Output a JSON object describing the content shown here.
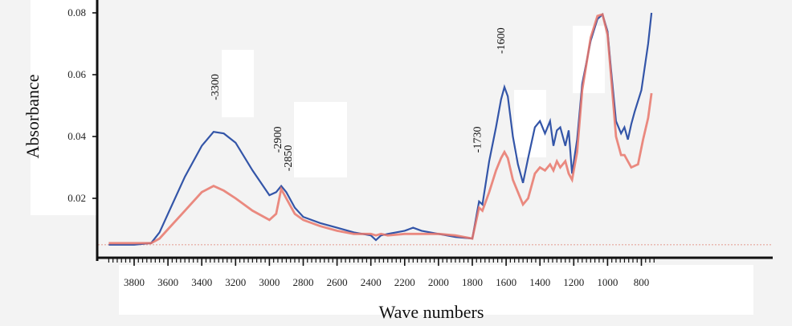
{
  "chart_data": {
    "type": "line",
    "title": "",
    "xlabel": "Wave numbers",
    "ylabel": "Absorbance",
    "xlim": [
      3950,
      720
    ],
    "ylim": [
      0.0,
      0.082
    ],
    "x_reversed": true,
    "x_ticks": [
      "3800",
      "3600",
      "3400",
      "3200",
      "3000",
      "2800",
      "2600",
      "2400",
      "2200",
      "2000",
      "1800",
      "1600",
      "1400",
      "1200",
      "1000",
      "800"
    ],
    "y_ticks": [
      "0.02",
      "0.04",
      "0.06",
      "0.08"
    ],
    "baseline_y": 0.005,
    "annotations": [
      {
        "text": "-3300",
        "x": 3300,
        "y": 0.056
      },
      {
        "text": "-2900",
        "x": 2930,
        "y": 0.039
      },
      {
        "text": "-2850",
        "x": 2870,
        "y": 0.033
      },
      {
        "text": "-1730",
        "x": 1750,
        "y": 0.039
      },
      {
        "text": "-1600",
        "x": 1610,
        "y": 0.071
      }
    ],
    "series": [
      {
        "color": "#3355a8",
        "x": [
          3950,
          3800,
          3700,
          3650,
          3600,
          3500,
          3400,
          3330,
          3270,
          3200,
          3100,
          3000,
          2960,
          2930,
          2900,
          2850,
          2800,
          2700,
          2600,
          2500,
          2400,
          2370,
          2340,
          2300,
          2200,
          2150,
          2100,
          2000,
          1900,
          1800,
          1780,
          1760,
          1740,
          1700,
          1660,
          1630,
          1610,
          1590,
          1560,
          1530,
          1500,
          1470,
          1430,
          1400,
          1370,
          1340,
          1320,
          1300,
          1280,
          1250,
          1230,
          1210,
          1180,
          1150,
          1100,
          1060,
          1030,
          1000,
          980,
          950,
          920,
          900,
          880,
          860,
          840,
          800,
          760,
          740
        ],
        "y": [
          0.005,
          0.005,
          0.0055,
          0.009,
          0.015,
          0.027,
          0.037,
          0.0415,
          0.041,
          0.038,
          0.029,
          0.021,
          0.022,
          0.024,
          0.022,
          0.017,
          0.014,
          0.012,
          0.0105,
          0.009,
          0.008,
          0.0065,
          0.008,
          0.0085,
          0.0095,
          0.0105,
          0.0095,
          0.0085,
          0.0075,
          0.007,
          0.013,
          0.019,
          0.018,
          0.032,
          0.043,
          0.052,
          0.056,
          0.053,
          0.04,
          0.031,
          0.025,
          0.033,
          0.043,
          0.045,
          0.041,
          0.045,
          0.037,
          0.042,
          0.043,
          0.037,
          0.042,
          0.028,
          0.039,
          0.057,
          0.071,
          0.078,
          0.0795,
          0.074,
          0.062,
          0.045,
          0.041,
          0.043,
          0.039,
          0.044,
          0.048,
          0.055,
          0.07,
          0.08
        ]
      },
      {
        "color": "#e8766a",
        "x": [
          3950,
          3800,
          3700,
          3650,
          3600,
          3500,
          3400,
          3330,
          3270,
          3200,
          3100,
          3000,
          2960,
          2930,
          2900,
          2850,
          2800,
          2700,
          2600,
          2500,
          2400,
          2370,
          2340,
          2300,
          2200,
          2100,
          2000,
          1900,
          1800,
          1780,
          1760,
          1740,
          1700,
          1660,
          1630,
          1610,
          1590,
          1560,
          1530,
          1500,
          1470,
          1430,
          1400,
          1370,
          1340,
          1320,
          1300,
          1280,
          1250,
          1230,
          1210,
          1180,
          1150,
          1100,
          1060,
          1030,
          1000,
          980,
          950,
          920,
          900,
          860,
          820,
          790,
          760,
          740
        ],
        "y": [
          0.0055,
          0.0055,
          0.0055,
          0.007,
          0.01,
          0.016,
          0.022,
          0.024,
          0.0225,
          0.02,
          0.016,
          0.013,
          0.015,
          0.023,
          0.02,
          0.015,
          0.013,
          0.011,
          0.0095,
          0.0085,
          0.0085,
          0.008,
          0.0085,
          0.008,
          0.0085,
          0.0085,
          0.0085,
          0.008,
          0.007,
          0.012,
          0.017,
          0.016,
          0.022,
          0.029,
          0.033,
          0.035,
          0.033,
          0.026,
          0.022,
          0.018,
          0.02,
          0.028,
          0.03,
          0.029,
          0.031,
          0.029,
          0.032,
          0.03,
          0.032,
          0.028,
          0.026,
          0.035,
          0.055,
          0.072,
          0.079,
          0.0795,
          0.073,
          0.06,
          0.04,
          0.034,
          0.034,
          0.03,
          0.031,
          0.039,
          0.046,
          0.054
        ]
      }
    ]
  }
}
